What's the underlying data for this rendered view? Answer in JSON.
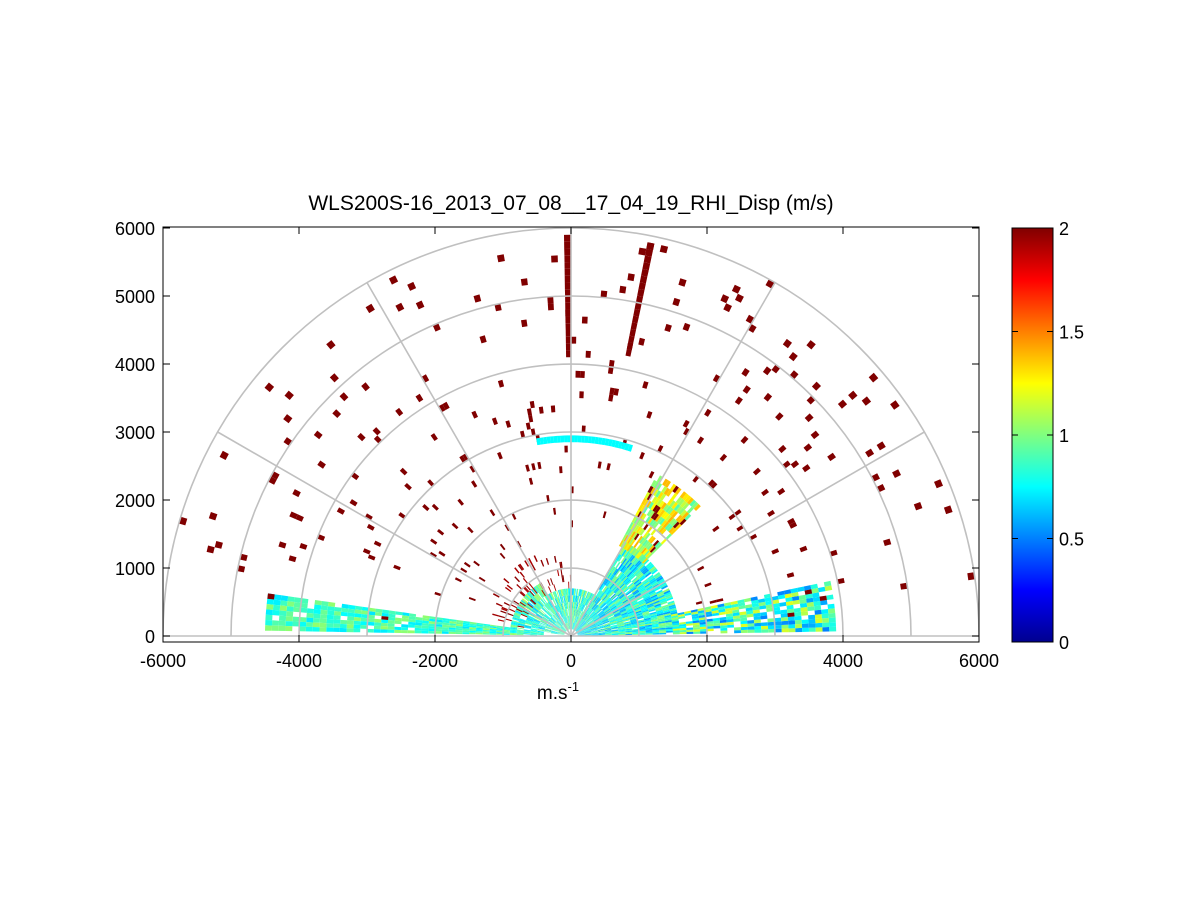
{
  "chart_data": {
    "type": "heatmap",
    "subtype": "polar-rhi",
    "title": "WLS200S-16_2013_07_08__17_04_19_RHI_Disp (m/s)",
    "xlabel": "m.s",
    "xlabel_sup": "-1",
    "ylabel": "",
    "xlim": [
      -6000,
      6000
    ],
    "ylim": [
      0,
      6000
    ],
    "xticks": [
      "-6000",
      "-4000",
      "-2000",
      "0",
      "2000",
      "4000",
      "6000"
    ],
    "yticks": [
      "0",
      "1000",
      "2000",
      "3000",
      "4000",
      "5000",
      "6000"
    ],
    "colorbar": {
      "colormap": "jet",
      "range": [
        0,
        2
      ],
      "ticks": [
        "0",
        "0.5",
        "1",
        "1.5",
        "2"
      ]
    },
    "polar_grid": {
      "radii_m": [
        1000,
        2000,
        3000,
        4000,
        5000,
        6000
      ],
      "angles_deg": [
        0,
        30,
        60,
        90,
        120,
        150,
        180
      ],
      "color": "#c0c0c0"
    },
    "range_gate_m": 100,
    "sectors": [
      {
        "name": "left-low-beam",
        "az_from": 172,
        "az_to": 179,
        "r_from": 400,
        "r_to": 4500,
        "vmin": 0.7,
        "vmax": 1.05,
        "density": 0.95
      },
      {
        "name": "near-field-left",
        "az_from": 120,
        "az_to": 172,
        "r_from": 100,
        "r_to": 900,
        "vmin": 0.6,
        "vmax": 1.1,
        "density": 0.8
      },
      {
        "name": "near-field-top",
        "az_from": 60,
        "az_to": 120,
        "r_from": 100,
        "r_to": 700,
        "vmin": 0.6,
        "vmax": 1.1,
        "density": 0.9
      },
      {
        "name": "near-field-right",
        "az_from": 1,
        "az_to": 60,
        "r_from": 100,
        "r_to": 1600,
        "vmin": 0.55,
        "vmax": 1.05,
        "density": 0.95
      },
      {
        "name": "right-low-beam",
        "az_from": 1,
        "az_to": 12,
        "r_from": 1500,
        "r_to": 3900,
        "vmin": 0.5,
        "vmax": 1.2,
        "density": 0.85
      },
      {
        "name": "right-plume",
        "az_from": 45,
        "az_to": 62,
        "r_from": 1500,
        "r_to": 2700,
        "vmin": 0.9,
        "vmax": 1.4,
        "density": 0.8
      },
      {
        "name": "inner-ring-noise",
        "az_from": 90,
        "az_to": 170,
        "r_from": 700,
        "r_to": 1300,
        "vmin": 1.9,
        "vmax": 2.0,
        "density": 0.12
      },
      {
        "name": "outer-noise",
        "az_from": 5,
        "az_to": 175,
        "r_from": 1500,
        "r_to": 6000,
        "vmin": 2.0,
        "vmax": 2.0,
        "density": 0.025
      }
    ],
    "features": [
      {
        "name": "ray-90",
        "az": 90,
        "r_from": 4100,
        "r_to": 5900,
        "value": 2.0
      },
      {
        "name": "ray-78",
        "az": 78,
        "r_from": 4300,
        "r_to": 5900,
        "value": 2.0
      },
      {
        "name": "arc-2800",
        "r": 2850,
        "az_from": 72,
        "az_to": 100,
        "value": 0.75
      }
    ]
  }
}
